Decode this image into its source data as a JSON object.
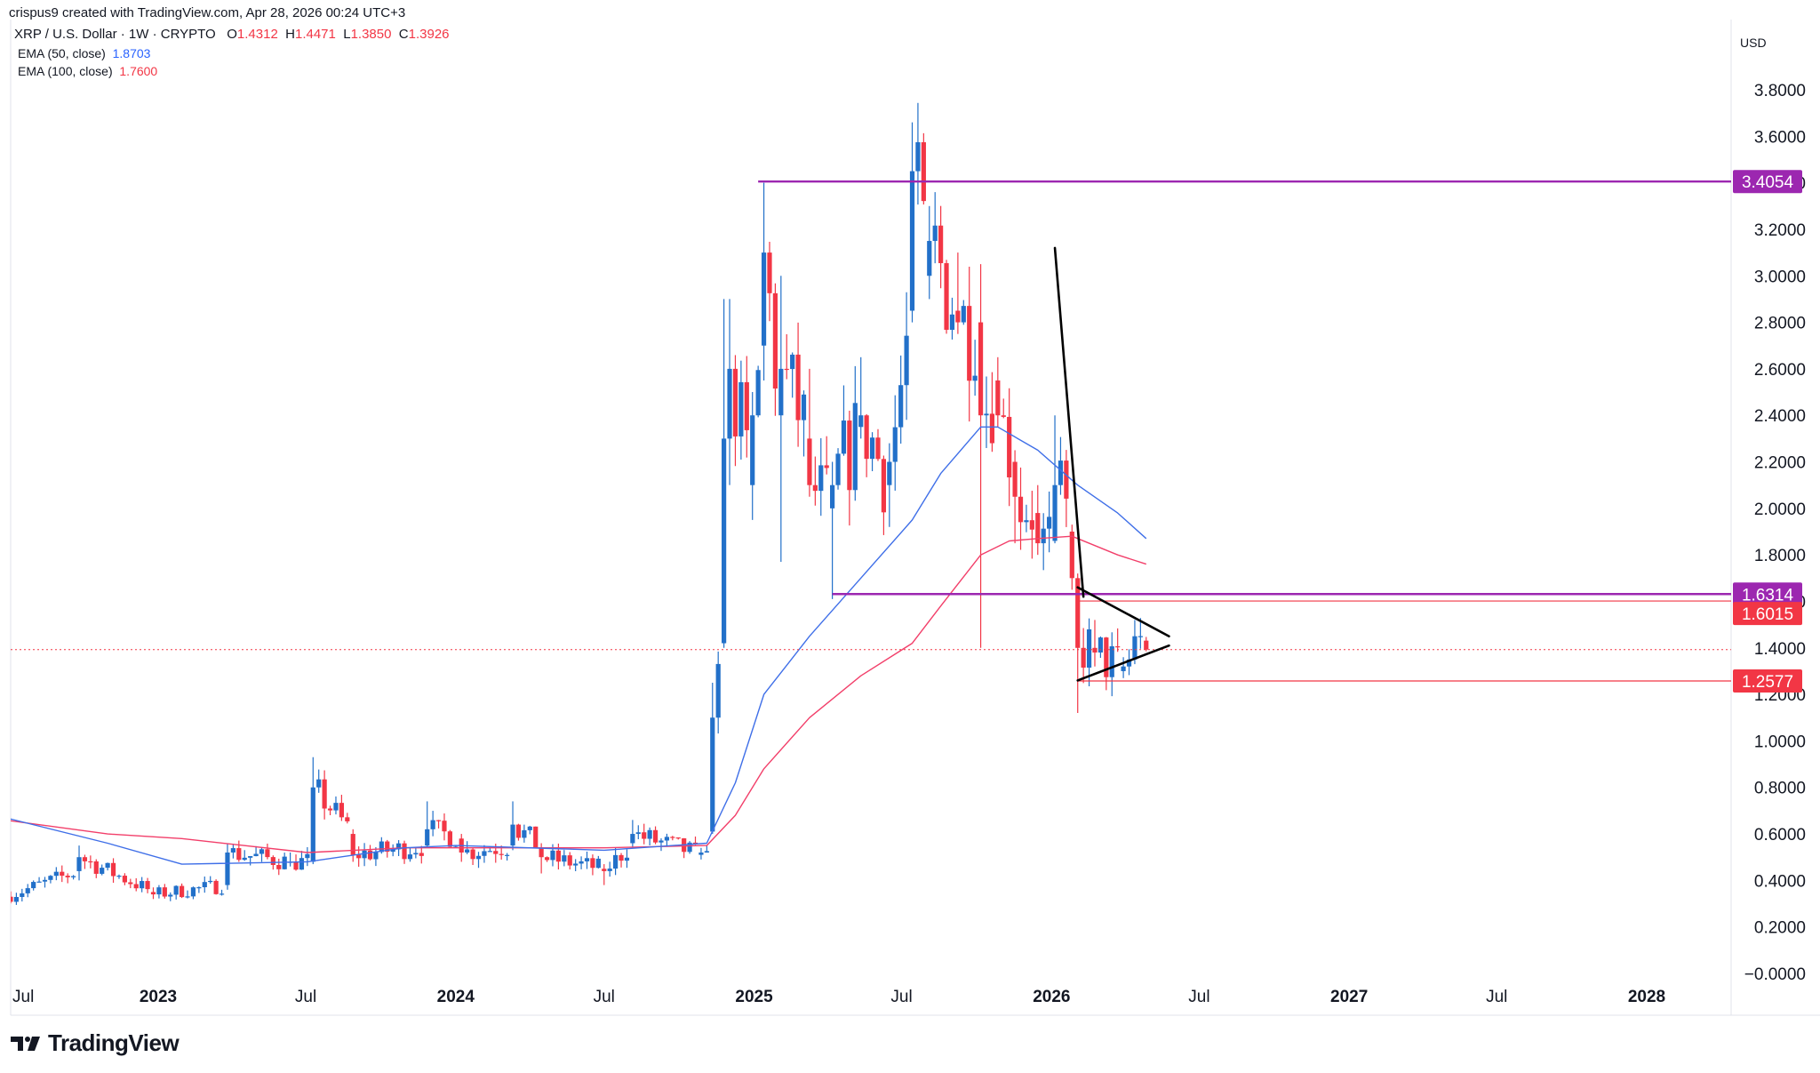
{
  "header": {
    "credit": "crispus9 created with TradingView.com, Apr 28, 2026 00:24 UTC+3",
    "symbol": "XRP / U.S. Dollar · 1W · CRYPTO",
    "open_label": "O",
    "open": "1.4312",
    "high_label": "H",
    "high": "1.4471",
    "low_label": "L",
    "low": "1.3850",
    "close_label": "C",
    "close": "1.3926",
    "currency": "USD"
  },
  "legend": [
    {
      "label": "EMA (50, close)",
      "value": "1.8703",
      "color": "#2962ff"
    },
    {
      "label": "EMA (100, close)",
      "value": "1.7600",
      "color": "#f23645"
    }
  ],
  "brand": {
    "name": "TradingView"
  },
  "colors": {
    "up": "#2270c9",
    "down": "#f23645",
    "ema50": "#3f6fe8",
    "ema100": "#f23f6a",
    "level": "#9c27b0",
    "support_line": "#f23645",
    "trend": "#000000",
    "grid": "#ffffff"
  },
  "chart_data": {
    "type": "candlestick",
    "title": "XRP / U.S. Dollar · 1W · CRYPTO",
    "y_ticks": [
      "3.8000",
      "3.6000",
      "3.4000",
      "3.2000",
      "3.0000",
      "2.8000",
      "2.6000",
      "2.4000",
      "2.2000",
      "2.0000",
      "1.8000",
      "1.6000",
      "1.4000",
      "1.2000",
      "1.0000",
      "0.8000",
      "0.6000",
      "0.4000",
      "0.2000",
      "−0.0000"
    ],
    "y_tick_values": [
      3.8,
      3.6,
      3.4,
      3.2,
      3.0,
      2.8,
      2.6,
      2.4,
      2.2,
      2.0,
      1.8,
      1.6,
      1.4,
      1.2,
      1.0,
      0.8,
      0.6,
      0.4,
      0.2,
      0.0
    ],
    "x_ticks": [
      {
        "label": "Jul",
        "date": "2022-07-01",
        "bold": false
      },
      {
        "label": "2023",
        "date": "2023-01-01",
        "bold": true
      },
      {
        "label": "Jul",
        "date": "2023-07-01",
        "bold": false
      },
      {
        "label": "2024",
        "date": "2024-01-01",
        "bold": true
      },
      {
        "label": "Jul",
        "date": "2024-07-01",
        "bold": false
      },
      {
        "label": "2025",
        "date": "2025-01-01",
        "bold": true
      },
      {
        "label": "Jul",
        "date": "2025-07-01",
        "bold": false
      },
      {
        "label": "2026",
        "date": "2026-01-01",
        "bold": true
      },
      {
        "label": "Jul",
        "date": "2026-07-01",
        "bold": false
      },
      {
        "label": "2027",
        "date": "2027-01-01",
        "bold": true
      },
      {
        "label": "Jul",
        "date": "2027-07-01",
        "bold": false
      },
      {
        "label": "2028",
        "date": "2028-01-01",
        "bold": true
      }
    ],
    "last_price": 1.3926,
    "levels": [
      {
        "value": 3.4054,
        "label": "3.4054",
        "start": "2025-01-06",
        "color": "#9c27b0"
      },
      {
        "value": 1.6314,
        "label": "1.6314",
        "start": "2025-04-07",
        "color": "#9c27b0"
      }
    ],
    "price_tags": [
      {
        "value": 1.6015,
        "label": "1.6015",
        "start": "2026-02-02",
        "color": "#f23645"
      },
      {
        "value": 1.2577,
        "label": "1.2577",
        "start": "2026-02-02",
        "color": "#f23645"
      }
    ],
    "trendlines": [
      {
        "from": [
          "2026-01-05",
          3.12
        ],
        "to": [
          "2026-02-09",
          1.62
        ]
      },
      {
        "from": [
          "2026-02-02",
          1.66
        ],
        "to": [
          "2026-05-25",
          1.45
        ]
      },
      {
        "from": [
          "2026-02-02",
          1.26
        ],
        "to": [
          "2026-05-25",
          1.41
        ]
      }
    ],
    "anchors": [
      {
        "date": "2022-06-27",
        "o": 0.32,
        "h": 0.37,
        "l": 0.3,
        "c": 0.33
      },
      {
        "date": "2022-09-26",
        "o": 0.44,
        "h": 0.55,
        "l": 0.4,
        "c": 0.5
      },
      {
        "date": "2022-12-26",
        "o": 0.35,
        "h": 0.37,
        "l": 0.32,
        "c": 0.34
      },
      {
        "date": "2023-03-27",
        "o": 0.38,
        "h": 0.56,
        "l": 0.36,
        "c": 0.52
      },
      {
        "date": "2023-06-12",
        "o": 0.48,
        "h": 0.52,
        "l": 0.46,
        "c": 0.48
      },
      {
        "date": "2023-07-10",
        "o": 0.48,
        "h": 0.93,
        "l": 0.47,
        "c": 0.8
      },
      {
        "date": "2023-08-28",
        "o": 0.6,
        "h": 0.62,
        "l": 0.48,
        "c": 0.51
      },
      {
        "date": "2023-11-27",
        "o": 0.55,
        "h": 0.74,
        "l": 0.54,
        "c": 0.62
      },
      {
        "date": "2024-01-08",
        "o": 0.58,
        "h": 0.6,
        "l": 0.48,
        "c": 0.52
      },
      {
        "date": "2024-03-11",
        "o": 0.55,
        "h": 0.74,
        "l": 0.53,
        "c": 0.64
      },
      {
        "date": "2024-04-15",
        "o": 0.54,
        "h": 0.56,
        "l": 0.43,
        "c": 0.5
      },
      {
        "date": "2024-07-01",
        "o": 0.45,
        "h": 0.47,
        "l": 0.38,
        "c": 0.44
      },
      {
        "date": "2024-08-05",
        "o": 0.56,
        "h": 0.66,
        "l": 0.54,
        "c": 0.6
      },
      {
        "date": "2024-10-28",
        "o": 0.51,
        "h": 0.54,
        "l": 0.49,
        "c": 0.52
      },
      {
        "date": "2024-11-11",
        "o": 0.61,
        "h": 1.25,
        "l": 0.6,
        "c": 1.1
      },
      {
        "date": "2024-11-25",
        "o": 1.42,
        "h": 2.9,
        "l": 1.4,
        "c": 2.3
      },
      {
        "date": "2024-12-02",
        "o": 2.3,
        "h": 2.9,
        "l": 2.1,
        "c": 2.6
      },
      {
        "date": "2024-12-30",
        "o": 2.1,
        "h": 2.5,
        "l": 1.95,
        "c": 2.4
      },
      {
        "date": "2025-01-13",
        "o": 2.7,
        "h": 3.4,
        "l": 2.55,
        "c": 3.1
      },
      {
        "date": "2025-02-03",
        "o": 2.4,
        "h": 3.0,
        "l": 1.77,
        "c": 2.6
      },
      {
        "date": "2025-03-10",
        "o": 2.3,
        "h": 2.6,
        "l": 2.05,
        "c": 2.1
      },
      {
        "date": "2025-04-07",
        "o": 2.0,
        "h": 2.2,
        "l": 1.61,
        "c": 2.1
      },
      {
        "date": "2025-05-12",
        "o": 2.35,
        "h": 2.65,
        "l": 2.3,
        "c": 2.4
      },
      {
        "date": "2025-06-16",
        "o": 2.1,
        "h": 2.28,
        "l": 1.92,
        "c": 2.2
      },
      {
        "date": "2025-07-14",
        "o": 2.85,
        "h": 3.66,
        "l": 2.8,
        "c": 3.45
      },
      {
        "date": "2025-08-04",
        "o": 3.0,
        "h": 3.3,
        "l": 2.9,
        "c": 3.15
      },
      {
        "date": "2025-09-08",
        "o": 2.85,
        "h": 3.1,
        "l": 2.75,
        "c": 2.8
      },
      {
        "date": "2025-10-06",
        "o": 2.8,
        "h": 3.05,
        "l": 1.4,
        "c": 2.4
      },
      {
        "date": "2025-10-27",
        "o": 2.55,
        "h": 2.65,
        "l": 2.35,
        "c": 2.4
      },
      {
        "date": "2025-11-17",
        "o": 2.2,
        "h": 2.25,
        "l": 1.85,
        "c": 2.05
      },
      {
        "date": "2025-12-15",
        "o": 1.98,
        "h": 2.1,
        "l": 1.8,
        "c": 1.85
      },
      {
        "date": "2026-01-05",
        "o": 1.86,
        "h": 2.4,
        "l": 1.85,
        "c": 2.1
      },
      {
        "date": "2026-01-26",
        "o": 1.9,
        "h": 1.93,
        "l": 1.65,
        "c": 1.7
      },
      {
        "date": "2026-02-02",
        "o": 1.7,
        "h": 1.72,
        "l": 1.12,
        "c": 1.4
      },
      {
        "date": "2026-02-23",
        "o": 1.4,
        "h": 1.52,
        "l": 1.32,
        "c": 1.38
      },
      {
        "date": "2026-03-30",
        "o": 1.3,
        "h": 1.36,
        "l": 1.27,
        "c": 1.32
      },
      {
        "date": "2026-04-13",
        "o": 1.35,
        "h": 1.52,
        "l": 1.33,
        "c": 1.45
      },
      {
        "date": "2026-04-27",
        "o": 1.4312,
        "h": 1.4471,
        "l": 1.385,
        "c": 1.3926
      }
    ],
    "ema50": [
      {
        "date": "2022-06-27",
        "v": 0.67
      },
      {
        "date": "2022-10-31",
        "v": 0.56
      },
      {
        "date": "2023-01-30",
        "v": 0.47
      },
      {
        "date": "2023-07-03",
        "v": 0.48
      },
      {
        "date": "2023-10-30",
        "v": 0.54
      },
      {
        "date": "2024-01-01",
        "v": 0.55
      },
      {
        "date": "2024-07-01",
        "v": 0.53
      },
      {
        "date": "2024-11-04",
        "v": 0.56
      },
      {
        "date": "2024-12-09",
        "v": 0.82
      },
      {
        "date": "2025-01-13",
        "v": 1.2
      },
      {
        "date": "2025-03-10",
        "v": 1.45
      },
      {
        "date": "2025-05-12",
        "v": 1.7
      },
      {
        "date": "2025-07-14",
        "v": 1.95
      },
      {
        "date": "2025-08-18",
        "v": 2.15
      },
      {
        "date": "2025-10-06",
        "v": 2.35
      },
      {
        "date": "2025-10-27",
        "v": 2.35
      },
      {
        "date": "2025-12-15",
        "v": 2.25
      },
      {
        "date": "2026-02-02",
        "v": 2.1
      },
      {
        "date": "2026-03-23",
        "v": 1.98
      },
      {
        "date": "2026-04-27",
        "v": 1.87
      }
    ],
    "ema100": [
      {
        "date": "2022-06-27",
        "v": 0.66
      },
      {
        "date": "2022-10-31",
        "v": 0.6
      },
      {
        "date": "2023-01-30",
        "v": 0.58
      },
      {
        "date": "2023-07-03",
        "v": 0.52
      },
      {
        "date": "2023-10-30",
        "v": 0.54
      },
      {
        "date": "2024-07-01",
        "v": 0.54
      },
      {
        "date": "2024-11-04",
        "v": 0.55
      },
      {
        "date": "2024-12-09",
        "v": 0.68
      },
      {
        "date": "2025-01-13",
        "v": 0.88
      },
      {
        "date": "2025-03-10",
        "v": 1.1
      },
      {
        "date": "2025-05-12",
        "v": 1.28
      },
      {
        "date": "2025-07-14",
        "v": 1.42
      },
      {
        "date": "2025-08-18",
        "v": 1.58
      },
      {
        "date": "2025-10-06",
        "v": 1.8
      },
      {
        "date": "2025-11-10",
        "v": 1.86
      },
      {
        "date": "2025-12-15",
        "v": 1.87
      },
      {
        "date": "2026-01-26",
        "v": 1.88
      },
      {
        "date": "2026-03-23",
        "v": 1.8
      },
      {
        "date": "2026-04-27",
        "v": 1.76
      }
    ]
  }
}
